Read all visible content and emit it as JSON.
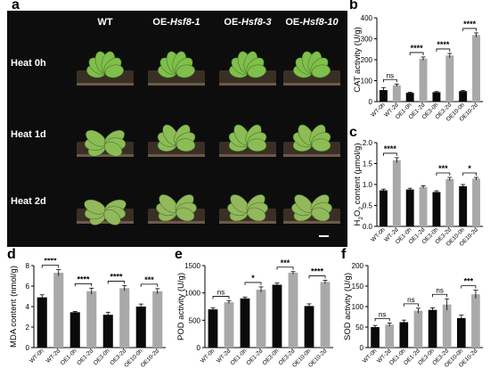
{
  "panel_labels": {
    "a": "a",
    "b": "b",
    "c": "c",
    "d": "d",
    "e": "e",
    "f": "f"
  },
  "photo": {
    "columns": [
      "WT",
      "OE-",
      "OE-",
      "OE-"
    ],
    "column_italic": [
      "",
      "Hsf8-1",
      "Hsf8-3",
      "Hsf8-10"
    ],
    "rows": [
      "Heat 0h",
      "Heat 1d",
      "Heat 2d"
    ]
  },
  "chart_data": [
    {
      "id": "b",
      "type": "bar",
      "ylabel": "CAT activity (U/g)",
      "ylim": [
        0,
        400
      ],
      "yticks": [
        0,
        100,
        200,
        300,
        400
      ],
      "categories": [
        "WT-0h",
        "WT-2d",
        "OE1-0h",
        "OE1-2d",
        "OE3-0h",
        "OE3-2d",
        "OE10-0h",
        "OE10-2d"
      ],
      "values": [
        55,
        78,
        42,
        205,
        45,
        220,
        50,
        318
      ],
      "errors": [
        12,
        6,
        3,
        8,
        3,
        10,
        3,
        10
      ],
      "significance": [
        {
          "pair": [
            0,
            1
          ],
          "label": "ns"
        },
        {
          "pair": [
            2,
            3
          ],
          "label": "****"
        },
        {
          "pair": [
            4,
            5
          ],
          "label": "****"
        },
        {
          "pair": [
            6,
            7
          ],
          "label": "****"
        }
      ]
    },
    {
      "id": "c",
      "type": "bar",
      "ylabel_parts": [
        "H",
        "2",
        "O",
        "2",
        " content (μmol/g)"
      ],
      "ylim": [
        0,
        2.0
      ],
      "yticks": [
        0.0,
        0.5,
        1.0,
        1.5,
        2.0
      ],
      "categories": [
        "WT-0h",
        "WT-2d",
        "OE1-0h",
        "OE1-2d",
        "OE3-0h",
        "OE3-2d",
        "OE10-0h",
        "OE10-2d"
      ],
      "values": [
        0.86,
        1.58,
        0.88,
        0.94,
        0.82,
        1.13,
        0.96,
        1.14
      ],
      "errors": [
        0.03,
        0.06,
        0.03,
        0.03,
        0.03,
        0.04,
        0.04,
        0.03
      ],
      "significance": [
        {
          "pair": [
            0,
            1
          ],
          "label": "****"
        },
        {
          "pair": [
            4,
            5
          ],
          "label": "***"
        },
        {
          "pair": [
            6,
            7
          ],
          "label": "*"
        }
      ]
    },
    {
      "id": "d",
      "type": "bar",
      "ylabel": "MDA content (nmol/g)",
      "ylim": [
        0,
        8
      ],
      "yticks": [
        0,
        2,
        4,
        6,
        8
      ],
      "categories": [
        "WT-0h",
        "WT-2d",
        "OE1-0h",
        "OE1-2d",
        "OE3-0h",
        "OE3-2d",
        "OE10-0h",
        "OE10-2d"
      ],
      "values": [
        4.9,
        7.3,
        3.45,
        5.5,
        3.2,
        5.8,
        4.0,
        5.5
      ],
      "errors": [
        0.25,
        0.3,
        0.08,
        0.3,
        0.25,
        0.25,
        0.25,
        0.25
      ],
      "significance": [
        {
          "pair": [
            0,
            1
          ],
          "label": "****"
        },
        {
          "pair": [
            2,
            3
          ],
          "label": "****"
        },
        {
          "pair": [
            4,
            5
          ],
          "label": "****"
        },
        {
          "pair": [
            6,
            7
          ],
          "label": "***"
        }
      ]
    },
    {
      "id": "e",
      "type": "bar",
      "ylabel": "POD activity (U/g)",
      "ylim": [
        0,
        1500
      ],
      "yticks": [
        0,
        500,
        1000,
        1500
      ],
      "categories": [
        "WT-0h",
        "WT-2d",
        "OE1-0h",
        "OE1-2d",
        "OE3-0h",
        "OE3-2d",
        "OE10-0h",
        "OE10-2d"
      ],
      "values": [
        700,
        830,
        900,
        1060,
        1150,
        1370,
        760,
        1200
      ],
      "errors": [
        25,
        25,
        25,
        50,
        30,
        20,
        40,
        30
      ],
      "significance": [
        {
          "pair": [
            0,
            1
          ],
          "label": "ns"
        },
        {
          "pair": [
            2,
            3
          ],
          "label": "*"
        },
        {
          "pair": [
            4,
            5
          ],
          "label": "***"
        },
        {
          "pair": [
            6,
            7
          ],
          "label": "****"
        }
      ]
    },
    {
      "id": "f",
      "type": "bar",
      "ylabel": "SOD activity (U/g)",
      "ylim": [
        0,
        200
      ],
      "yticks": [
        0,
        50,
        100,
        150,
        200
      ],
      "categories": [
        "WT-0h",
        "WT-2d",
        "OE1-0h",
        "OE1-2d",
        "OE3-0h",
        "OE3-2d",
        "OE10-0h",
        "OE10-2d"
      ],
      "values": [
        50,
        56,
        62,
        90,
        92,
        105,
        72,
        130
      ],
      "errors": [
        4,
        4,
        5,
        6,
        5,
        14,
        7,
        10
      ],
      "significance": [
        {
          "pair": [
            0,
            1
          ],
          "label": "ns"
        },
        {
          "pair": [
            2,
            3
          ],
          "label": "ns"
        },
        {
          "pair": [
            4,
            5
          ],
          "label": "ns"
        },
        {
          "pair": [
            6,
            7
          ],
          "label": "***"
        }
      ]
    }
  ],
  "colors": {
    "control": "#0a0a0a",
    "heat": "#a9a9a9",
    "photo_bg": "#0d0d0d",
    "photo_text": "#ffffff"
  }
}
